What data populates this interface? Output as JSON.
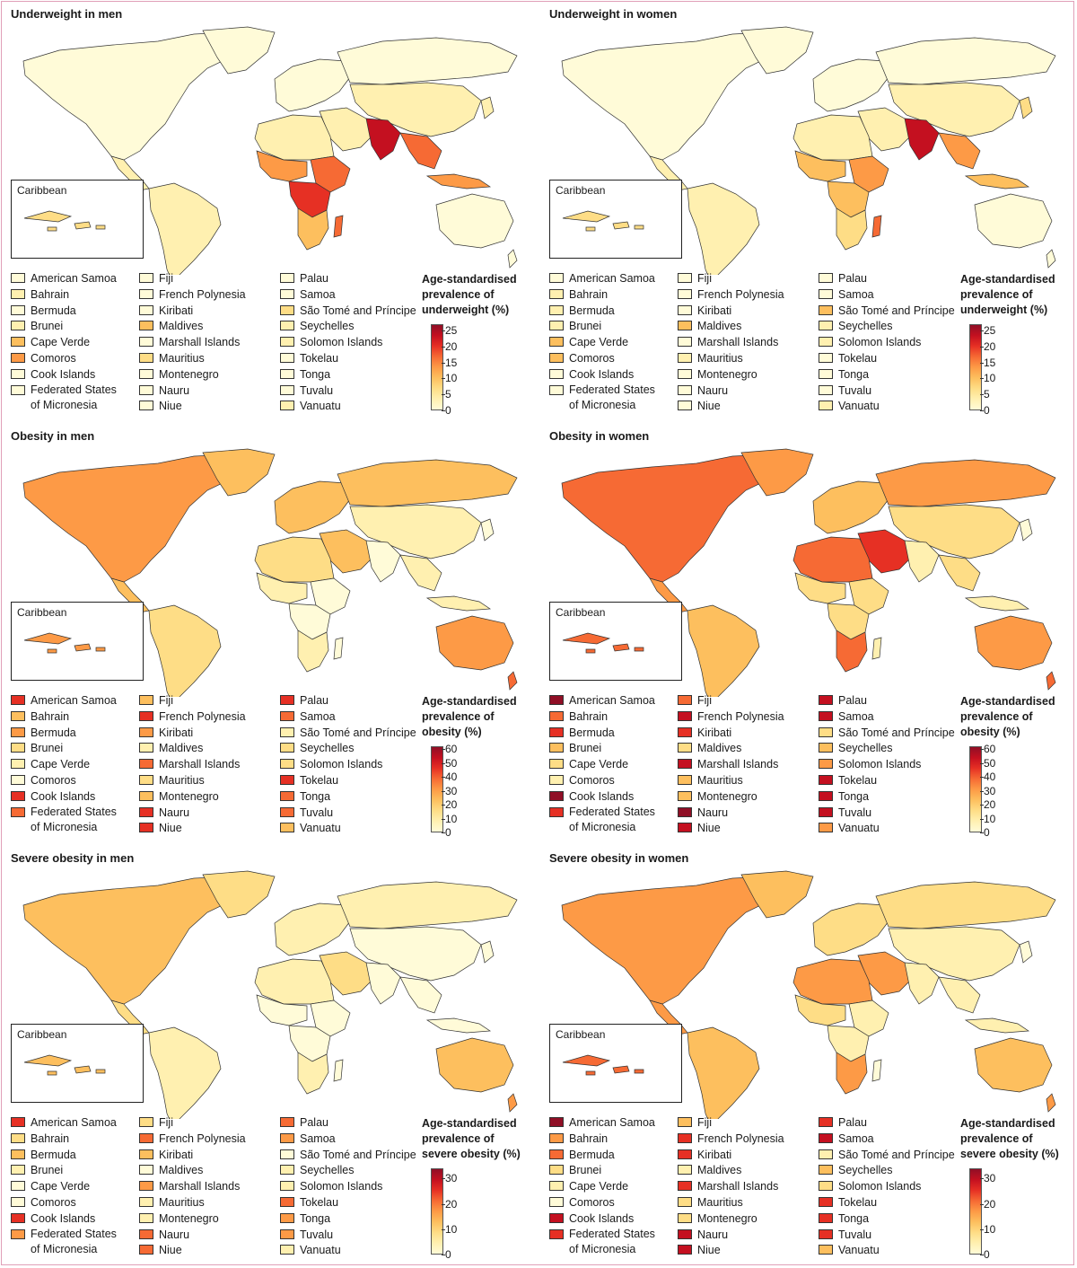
{
  "inset_label": "Caribbean",
  "palette": [
    "#fffbd8",
    "#fff0b0",
    "#fedd86",
    "#fdbf5e",
    "#fd9a46",
    "#f66a34",
    "#e63024",
    "#c41020",
    "#900f26"
  ],
  "panels": [
    {
      "title": "Underweight in men",
      "scale_title": "Age-standardised prevalence of underweight (%)",
      "ticks": [
        "25",
        "20",
        "15",
        "10",
        "5",
        "0"
      ],
      "scale_max": 27,
      "map_pattern": "underweight",
      "legend": [
        {
          "label": "American Samoa",
          "level": 0
        },
        {
          "label": "Bahrain",
          "level": 1
        },
        {
          "label": "Bermuda",
          "level": 0
        },
        {
          "label": "Brunei",
          "level": 1
        },
        {
          "label": "Cape Verde",
          "level": 3
        },
        {
          "label": "Comoros",
          "level": 4
        },
        {
          "label": "Cook Islands",
          "level": 0
        },
        {
          "label": "Federated States of Micronesia",
          "level": 0
        },
        {
          "label": "Fiji",
          "level": 0
        },
        {
          "label": "French Polynesia",
          "level": 0
        },
        {
          "label": "Kiribati",
          "level": 0
        },
        {
          "label": "Maldives",
          "level": 3
        },
        {
          "label": "Marshall Islands",
          "level": 0
        },
        {
          "label": "Mauritius",
          "level": 2
        },
        {
          "label": "Montenegro",
          "level": 0
        },
        {
          "label": "Nauru",
          "level": 0
        },
        {
          "label": "Niue",
          "level": 0
        },
        {
          "label": "Palau",
          "level": 0
        },
        {
          "label": "Samoa",
          "level": 0
        },
        {
          "label": "São Tomé and Príncipe",
          "level": 2
        },
        {
          "label": "Seychelles",
          "level": 1
        },
        {
          "label": "Solomon Islands",
          "level": 1
        },
        {
          "label": "Tokelau",
          "level": 0
        },
        {
          "label": "Tonga",
          "level": 0
        },
        {
          "label": "Tuvalu",
          "level": 0
        },
        {
          "label": "Vanuatu",
          "level": 1
        }
      ]
    },
    {
      "title": "Underweight in women",
      "scale_title": "Age-standardised prevalence of underweight (%)",
      "ticks": [
        "25",
        "20",
        "15",
        "10",
        "5",
        "0"
      ],
      "scale_max": 27,
      "map_pattern": "underweight_w",
      "legend": [
        {
          "label": "American Samoa",
          "level": 0
        },
        {
          "label": "Bahrain",
          "level": 1
        },
        {
          "label": "Bermuda",
          "level": 1
        },
        {
          "label": "Brunei",
          "level": 1
        },
        {
          "label": "Cape Verde",
          "level": 3
        },
        {
          "label": "Comoros",
          "level": 3
        },
        {
          "label": "Cook Islands",
          "level": 0
        },
        {
          "label": "Federated States of Micronesia",
          "level": 0
        },
        {
          "label": "Fiji",
          "level": 0
        },
        {
          "label": "French Polynesia",
          "level": 0
        },
        {
          "label": "Kiribati",
          "level": 0
        },
        {
          "label": "Maldives",
          "level": 3
        },
        {
          "label": "Marshall Islands",
          "level": 0
        },
        {
          "label": "Mauritius",
          "level": 1
        },
        {
          "label": "Montenegro",
          "level": 0
        },
        {
          "label": "Nauru",
          "level": 0
        },
        {
          "label": "Niue",
          "level": 0
        },
        {
          "label": "Palau",
          "level": 0
        },
        {
          "label": "Samoa",
          "level": 0
        },
        {
          "label": "São Tomé and Príncipe",
          "level": 3
        },
        {
          "label": "Seychelles",
          "level": 1
        },
        {
          "label": "Solomon Islands",
          "level": 1
        },
        {
          "label": "Tokelau",
          "level": 0
        },
        {
          "label": "Tonga",
          "level": 0
        },
        {
          "label": "Tuvalu",
          "level": 0
        },
        {
          "label": "Vanuatu",
          "level": 1
        }
      ]
    },
    {
      "title": "Obesity in men",
      "scale_title": "Age-standardised prevalence of obesity (%)",
      "ticks": [
        "60",
        "50",
        "40",
        "30",
        "20",
        "10",
        "0"
      ],
      "scale_max": 62,
      "map_pattern": "obesity_m",
      "legend": [
        {
          "label": "American Samoa",
          "level": 6
        },
        {
          "label": "Bahrain",
          "level": 3
        },
        {
          "label": "Bermuda",
          "level": 4
        },
        {
          "label": "Brunei",
          "level": 2
        },
        {
          "label": "Cape Verde",
          "level": 1
        },
        {
          "label": "Comoros",
          "level": 0
        },
        {
          "label": "Cook Islands",
          "level": 6
        },
        {
          "label": "Federated States of Micronesia",
          "level": 5
        },
        {
          "label": "Fiji",
          "level": 3
        },
        {
          "label": "French Polynesia",
          "level": 6
        },
        {
          "label": "Kiribati",
          "level": 4
        },
        {
          "label": "Maldives",
          "level": 1
        },
        {
          "label": "Marshall Islands",
          "level": 5
        },
        {
          "label": "Mauritius",
          "level": 2
        },
        {
          "label": "Montenegro",
          "level": 3
        },
        {
          "label": "Nauru",
          "level": 6
        },
        {
          "label": "Niue",
          "level": 6
        },
        {
          "label": "Palau",
          "level": 6
        },
        {
          "label": "Samoa",
          "level": 5
        },
        {
          "label": "São Tomé and Príncipe",
          "level": 1
        },
        {
          "label": "Seychelles",
          "level": 2
        },
        {
          "label": "Solomon Islands",
          "level": 2
        },
        {
          "label": "Tokelau",
          "level": 6
        },
        {
          "label": "Tonga",
          "level": 5
        },
        {
          "label": "Tuvalu",
          "level": 5
        },
        {
          "label": "Vanuatu",
          "level": 3
        }
      ]
    },
    {
      "title": "Obesity in women",
      "scale_title": "Age-standardised prevalence of obesity (%)",
      "ticks": [
        "60",
        "50",
        "40",
        "30",
        "20",
        "10",
        "0"
      ],
      "scale_max": 62,
      "map_pattern": "obesity_w",
      "legend": [
        {
          "label": "American Samoa",
          "level": 8
        },
        {
          "label": "Bahrain",
          "level": 5
        },
        {
          "label": "Bermuda",
          "level": 6
        },
        {
          "label": "Brunei",
          "level": 3
        },
        {
          "label": "Cape Verde",
          "level": 2
        },
        {
          "label": "Comoros",
          "level": 1
        },
        {
          "label": "Cook Islands",
          "level": 8
        },
        {
          "label": "Federated States of Micronesia",
          "level": 6
        },
        {
          "label": "Fiji",
          "level": 5
        },
        {
          "label": "French Polynesia",
          "level": 7
        },
        {
          "label": "Kiribati",
          "level": 6
        },
        {
          "label": "Maldives",
          "level": 2
        },
        {
          "label": "Marshall Islands",
          "level": 7
        },
        {
          "label": "Mauritius",
          "level": 3
        },
        {
          "label": "Montenegro",
          "level": 3
        },
        {
          "label": "Nauru",
          "level": 8
        },
        {
          "label": "Niue",
          "level": 7
        },
        {
          "label": "Palau",
          "level": 7
        },
        {
          "label": "Samoa",
          "level": 7
        },
        {
          "label": "São Tomé and Príncipe",
          "level": 2
        },
        {
          "label": "Seychelles",
          "level": 3
        },
        {
          "label": "Solomon Islands",
          "level": 4
        },
        {
          "label": "Tokelau",
          "level": 7
        },
        {
          "label": "Tonga",
          "level": 7
        },
        {
          "label": "Tuvalu",
          "level": 7
        },
        {
          "label": "Vanuatu",
          "level": 4
        }
      ]
    },
    {
      "title": "Severe obesity in men",
      "scale_title": "Age-standardised prevalence of severe obesity (%)",
      "ticks": [
        "30",
        "20",
        "10",
        "0"
      ],
      "scale_max": 34,
      "map_pattern": "severe_m",
      "legend": [
        {
          "label": "American Samoa",
          "level": 6
        },
        {
          "label": "Bahrain",
          "level": 2
        },
        {
          "label": "Bermuda",
          "level": 3
        },
        {
          "label": "Brunei",
          "level": 1
        },
        {
          "label": "Cape Verde",
          "level": 0
        },
        {
          "label": "Comoros",
          "level": 0
        },
        {
          "label": "Cook Islands",
          "level": 6
        },
        {
          "label": "Federated States of Micronesia",
          "level": 4
        },
        {
          "label": "Fiji",
          "level": 2
        },
        {
          "label": "French Polynesia",
          "level": 5
        },
        {
          "label": "Kiribati",
          "level": 3
        },
        {
          "label": "Maldives",
          "level": 0
        },
        {
          "label": "Marshall Islands",
          "level": 4
        },
        {
          "label": "Mauritius",
          "level": 1
        },
        {
          "label": "Montenegro",
          "level": 1
        },
        {
          "label": "Nauru",
          "level": 5
        },
        {
          "label": "Niue",
          "level": 5
        },
        {
          "label": "Palau",
          "level": 5
        },
        {
          "label": "Samoa",
          "level": 4
        },
        {
          "label": "São Tomé and Príncipe",
          "level": 0
        },
        {
          "label": "Seychelles",
          "level": 1
        },
        {
          "label": "Solomon Islands",
          "level": 1
        },
        {
          "label": "Tokelau",
          "level": 5
        },
        {
          "label": "Tonga",
          "level": 4
        },
        {
          "label": "Tuvalu",
          "level": 4
        },
        {
          "label": "Vanuatu",
          "level": 1
        }
      ]
    },
    {
      "title": "Severe obesity in women",
      "scale_title": "Age-standardised prevalence of severe obesity (%)",
      "ticks": [
        "30",
        "20",
        "10",
        "0"
      ],
      "scale_max": 34,
      "map_pattern": "severe_w",
      "legend": [
        {
          "label": "American Samoa",
          "level": 8
        },
        {
          "label": "Bahrain",
          "level": 4
        },
        {
          "label": "Bermuda",
          "level": 5
        },
        {
          "label": "Brunei",
          "level": 2
        },
        {
          "label": "Cape Verde",
          "level": 1
        },
        {
          "label": "Comoros",
          "level": 0
        },
        {
          "label": "Cook Islands",
          "level": 7
        },
        {
          "label": "Federated States of Micronesia",
          "level": 6
        },
        {
          "label": "Fiji",
          "level": 3
        },
        {
          "label": "French Polynesia",
          "level": 6
        },
        {
          "label": "Kiribati",
          "level": 6
        },
        {
          "label": "Maldives",
          "level": 1
        },
        {
          "label": "Marshall Islands",
          "level": 6
        },
        {
          "label": "Mauritius",
          "level": 2
        },
        {
          "label": "Montenegro",
          "level": 2
        },
        {
          "label": "Nauru",
          "level": 7
        },
        {
          "label": "Niue",
          "level": 7
        },
        {
          "label": "Palau",
          "level": 6
        },
        {
          "label": "Samoa",
          "level": 7
        },
        {
          "label": "São Tomé and Príncipe",
          "level": 1
        },
        {
          "label": "Seychelles",
          "level": 3
        },
        {
          "label": "Solomon Islands",
          "level": 2
        },
        {
          "label": "Tokelau",
          "level": 6
        },
        {
          "label": "Tonga",
          "level": 6
        },
        {
          "label": "Tuvalu",
          "level": 6
        },
        {
          "label": "Vanuatu",
          "level": 3
        }
      ]
    }
  ]
}
